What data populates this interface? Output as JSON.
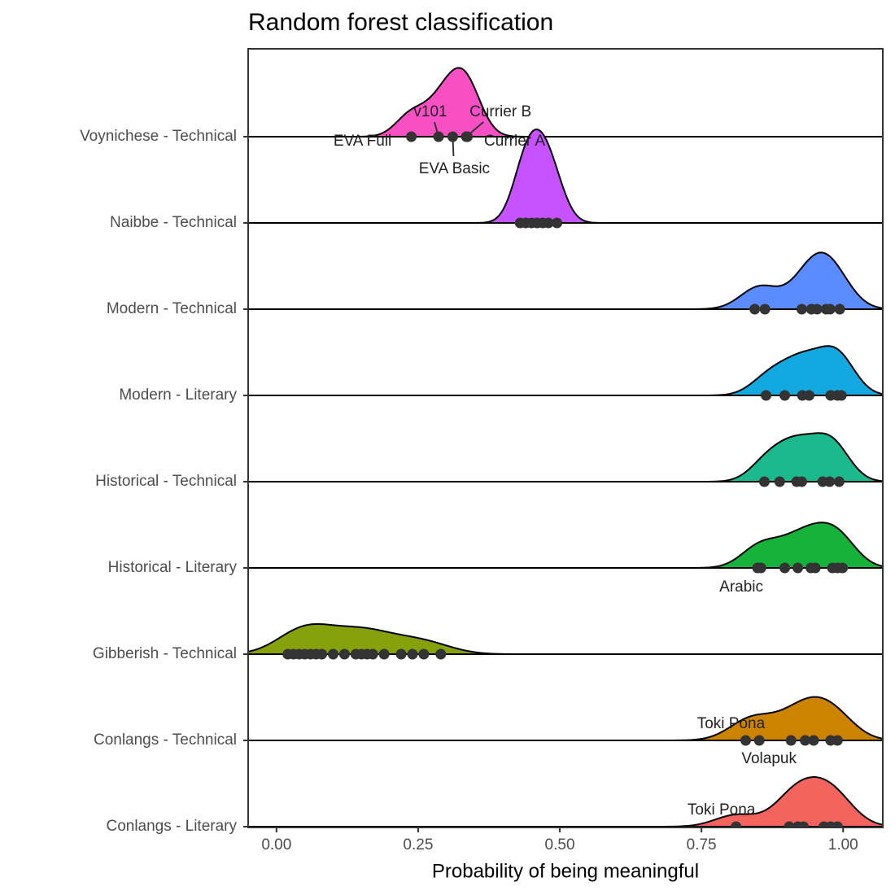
{
  "chart_data": {
    "type": "ridgeline",
    "title": "Random forest classification",
    "x_label": "Probability of being meaningful",
    "xlim": [
      -0.05,
      1.07
    ],
    "xticks": [
      {
        "value": 0,
        "label": "0.00"
      },
      {
        "value": 0.25,
        "label": "0.25"
      },
      {
        "value": 0.5,
        "label": "0.50"
      },
      {
        "value": 0.75,
        "label": "0.75"
      },
      {
        "value": 1,
        "label": "1.00"
      }
    ],
    "grid": false,
    "series": [
      {
        "name": "Voynichese - Technical",
        "color": "#f84fc4",
        "values": [
          0.238,
          0.286,
          0.311,
          0.335,
          0.337
        ],
        "labels": [
          "EVA Full",
          "v101",
          "EVA Basic",
          "Currier B",
          "Currier A"
        ]
      },
      {
        "name": "Naibbe - Technical",
        "color": "#c653ff",
        "values": [
          0.43,
          0.44,
          0.45,
          0.46,
          0.47,
          0.48,
          0.495
        ]
      },
      {
        "name": "Modern - Technical",
        "color": "#5a8cff",
        "values": [
          0.844,
          0.862,
          0.927,
          0.944,
          0.954,
          0.97,
          0.977,
          0.994
        ]
      },
      {
        "name": "Modern - Literary",
        "color": "#14a8e0",
        "values": [
          0.864,
          0.897,
          0.928,
          0.94,
          0.978,
          0.99,
          0.997
        ]
      },
      {
        "name": "Historical - Technical",
        "color": "#1cb98e",
        "values": [
          0.861,
          0.888,
          0.918,
          0.927,
          0.964,
          0.976,
          0.993
        ]
      },
      {
        "name": "Historical - Literary",
        "color": "#17b23a",
        "values": [
          0.849,
          0.855,
          0.897,
          0.92,
          0.943,
          0.951,
          0.981,
          0.99,
          0.999
        ],
        "labels": [
          "Arabic",
          null,
          null,
          null,
          null,
          null,
          null,
          null,
          null
        ]
      },
      {
        "name": "Gibberish - Technical",
        "color": "#86a10c",
        "values": [
          0.02,
          0.03,
          0.04,
          0.05,
          0.06,
          0.07,
          0.08,
          0.1,
          0.12,
          0.14,
          0.15,
          0.16,
          0.17,
          0.19,
          0.22,
          0.24,
          0.26,
          0.29
        ]
      },
      {
        "name": "Conlangs - Technical",
        "color": "#cc8300",
        "values": [
          0.828,
          0.852,
          0.908,
          0.933,
          0.948,
          0.978,
          0.99
        ],
        "labels": [
          "Toki Pona",
          "Volapuk",
          null,
          null,
          null,
          null,
          null
        ]
      },
      {
        "name": "Conlangs - Literary",
        "color": "#f4645e",
        "values": [
          0.811,
          0.905,
          0.92,
          0.93,
          0.966,
          0.978,
          0.99
        ],
        "labels": [
          "Toki Pona",
          null,
          null,
          null,
          null,
          null,
          null
        ]
      }
    ]
  }
}
